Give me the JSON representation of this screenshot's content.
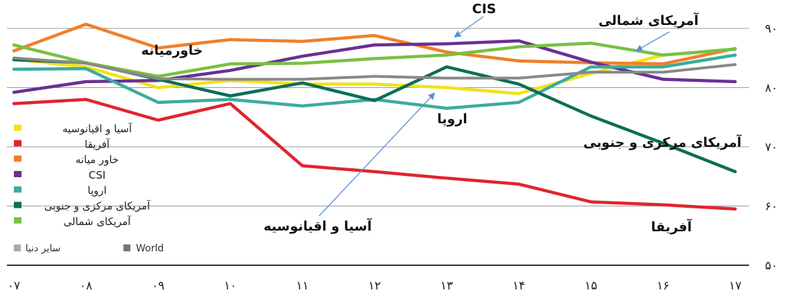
{
  "chart_data": {
    "type": "line",
    "title": "",
    "x_ticks": [
      "۰۷",
      "۰۸",
      "۰۹",
      "۱۰",
      "۱۱",
      "۱۲",
      "۱۳",
      "۱۴",
      "۱۵",
      "۱۶",
      "۱۷"
    ],
    "y_ticks": [
      "۹۰",
      "۸۰",
      "۷۰",
      "۶۰",
      "۵۰"
    ],
    "y_tick_values": [
      90,
      80,
      70,
      60,
      50
    ],
    "ylim": [
      50,
      90
    ],
    "xlim": [
      7,
      17
    ],
    "grid": "horizontal",
    "series": [
      {
        "name": "آسیا و اقیانوسیه",
        "color": "#f2e21a",
        "x": [
          7,
          8,
          9,
          10,
          11,
          12,
          13,
          14,
          15,
          16,
          17
        ],
        "y": [
          84.8,
          83.5,
          80.0,
          81.2,
          80.6,
          80.6,
          80.0,
          79.0,
          82.4,
          85.5,
          86.5
        ]
      },
      {
        "name": "آفریقا",
        "color": "#e0242f",
        "x": [
          7,
          8,
          9,
          10,
          11,
          12,
          13,
          14,
          15,
          16,
          17
        ],
        "y": [
          77.3,
          78.0,
          74.5,
          77.3,
          66.8,
          65.8,
          64.7,
          63.7,
          60.7,
          60.2,
          59.5
        ]
      },
      {
        "name": "خاور میانه",
        "color": "#f07f2a",
        "x": [
          7,
          8,
          9,
          10,
          11,
          12,
          13,
          14,
          15,
          16,
          17
        ],
        "y": [
          86.2,
          90.7,
          86.7,
          88.1,
          87.8,
          88.8,
          86.0,
          84.5,
          84.2,
          84.0,
          86.6
        ]
      },
      {
        "name": "CSI",
        "color": "#6a2f93",
        "x": [
          7,
          8,
          9,
          10,
          11,
          12,
          13,
          14,
          15,
          16,
          17
        ],
        "y": [
          79.2,
          81.0,
          81.2,
          82.9,
          85.3,
          87.2,
          87.4,
          87.9,
          84.3,
          81.4,
          81.0
        ]
      },
      {
        "name": "اروپا",
        "color": "#3aaca0",
        "x": [
          7,
          8,
          9,
          10,
          11,
          12,
          13,
          14,
          15,
          16,
          17
        ],
        "y": [
          83.1,
          83.2,
          77.5,
          78.0,
          76.9,
          78.0,
          76.5,
          77.5,
          83.5,
          83.5,
          85.5
        ]
      },
      {
        "name": "آمریکای مرکزی و جنوبی",
        "color": "#0e6e55",
        "x": [
          7,
          8,
          9,
          10,
          11,
          12,
          13,
          14,
          15,
          16,
          17
        ],
        "y": [
          84.7,
          84.2,
          81.4,
          78.6,
          80.8,
          77.8,
          83.5,
          80.6,
          75.2,
          70.6,
          65.8
        ]
      },
      {
        "name": "آمریکای شمالی",
        "color": "#78c043",
        "x": [
          7,
          8,
          9,
          10,
          11,
          12,
          13,
          14,
          15,
          16,
          17
        ],
        "y": [
          87.2,
          84.2,
          81.9,
          84.0,
          84.1,
          84.9,
          85.5,
          86.9,
          87.5,
          85.5,
          86.5
        ]
      },
      {
        "name": "World",
        "color": "#888888",
        "x": [
          7,
          8,
          9,
          10,
          11,
          12,
          13,
          14,
          15,
          16,
          17
        ],
        "y": [
          85.0,
          84.1,
          81.5,
          81.4,
          81.4,
          81.9,
          81.6,
          81.6,
          82.6,
          82.6,
          83.9
        ]
      }
    ],
    "legend": {
      "placement": "bottom-left",
      "entries": [
        {
          "label": "آسیا و اقیانوسیه",
          "color": "#f2e21a"
        },
        {
          "label": "آفریقا",
          "color": "#e0242f"
        },
        {
          "label": "خاور میانه",
          "color": "#f07f2a"
        },
        {
          "label": "CSI",
          "color": "#6a2f93"
        },
        {
          "label": "اروپا",
          "color": "#3aaca0"
        },
        {
          "label": "آمریکای مرکزی و جنوبی",
          "color": "#0e6e55"
        },
        {
          "label": "آمریکای شمالی",
          "color": "#78c043"
        }
      ],
      "extra": [
        {
          "label": "سایر دنیا",
          "color": "#aaaaaa"
        },
        {
          "label": "World",
          "color": "#777777"
        }
      ]
    },
    "annotations": [
      {
        "text": "CIS",
        "target_x": 12.8,
        "target_y": 87.4,
        "arrow": true
      },
      {
        "text": "آمریکای شمالی",
        "target_x": 15.3,
        "target_y": 86.4,
        "arrow": true
      },
      {
        "text": "خاورمیانه",
        "arrow": false
      },
      {
        "text": "اروپا",
        "arrow": false
      },
      {
        "text": "آمریکای مرکزی و جنوبی",
        "arrow": false
      },
      {
        "text": "آسیا و اقیانوسیه",
        "target_x": 12.3,
        "target_y": 79.6,
        "arrow": true
      },
      {
        "text": "آفریقا",
        "arrow": false
      }
    ]
  }
}
